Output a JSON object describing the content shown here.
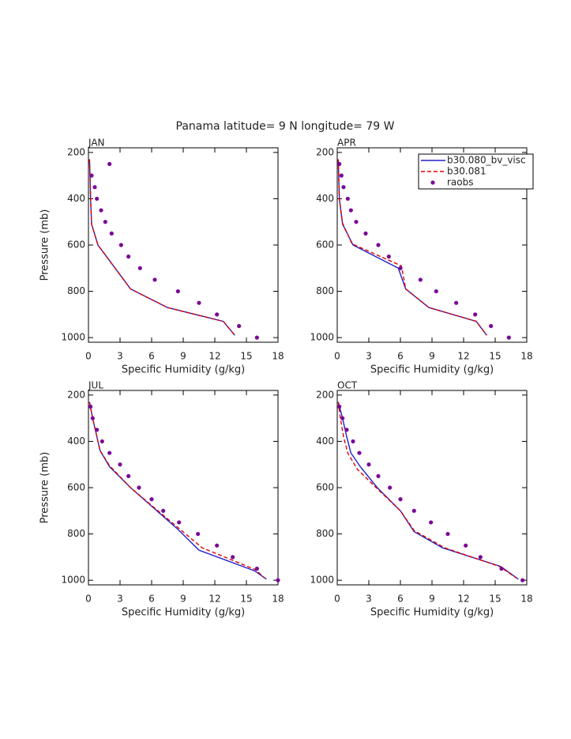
{
  "title": "Panama  latitude= 9 N longitude= 79 W",
  "chart_data": [
    {
      "type": "profile",
      "label": "JAN",
      "xlabel": "Specific Humidity (g/kg)",
      "ylabel": "Pressure (mb)",
      "xlim": [
        0,
        18
      ],
      "xticks": [
        0,
        3,
        6,
        9,
        12,
        15,
        18
      ],
      "ylim": [
        1020,
        180
      ],
      "yticks": [
        200,
        400,
        600,
        800,
        1000
      ],
      "series": [
        {
          "name": "b30.080_bv_visc",
          "color": "#2020c8",
          "style": "solid",
          "values": [
            0.1,
            0.15,
            0.2,
            0.3,
            0.9,
            4,
            7.5,
            12.8,
            13.9
          ],
          "levels": [
            230,
            300,
            400,
            510,
            600,
            790,
            870,
            930,
            990
          ]
        },
        {
          "name": "b30.081",
          "color": "#e00000",
          "style": "dashed",
          "values": [
            0.1,
            0.15,
            0.2,
            0.3,
            0.9,
            4,
            7.5,
            12.8,
            13.9
          ],
          "levels": [
            230,
            300,
            400,
            510,
            600,
            790,
            870,
            930,
            990
          ]
        },
        {
          "name": "raobs",
          "color": "#7a0a96",
          "style": "dots",
          "values": [
            2,
            0.3,
            0.6,
            0.8,
            1.2,
            1.6,
            2.2,
            3.1,
            3.8,
            4.9,
            6.3,
            8.5,
            10.5,
            12.2,
            14.3,
            16
          ],
          "levels": [
            250,
            300,
            350,
            400,
            450,
            500,
            550,
            600,
            650,
            700,
            750,
            800,
            850,
            900,
            950,
            1000
          ]
        }
      ]
    },
    {
      "type": "profile",
      "label": "APR",
      "xlabel": "Specific Humidity (g/kg)",
      "legend": "upper right",
      "xlim": [
        0,
        18
      ],
      "xticks": [
        0,
        3,
        6,
        9,
        12,
        15,
        18
      ],
      "ylim": [
        1020,
        180
      ],
      "yticks": [
        200,
        400,
        600,
        800,
        1000
      ],
      "series": [
        {
          "name": "b30.080_bv_visc",
          "color": "#2020c8",
          "style": "solid",
          "values": [
            0.1,
            0.2,
            0.5,
            1.5,
            5.8,
            6.5,
            8.7,
            13.2,
            14.2
          ],
          "levels": [
            230,
            400,
            510,
            600,
            700,
            790,
            870,
            930,
            990
          ]
        },
        {
          "name": "b30.081",
          "color": "#e00000",
          "style": "dashed",
          "values": [
            0.1,
            0.2,
            0.5,
            1.4,
            6.1,
            6.5,
            8.7,
            13.2,
            14.2
          ],
          "levels": [
            230,
            400,
            505,
            595,
            690,
            790,
            870,
            930,
            990
          ]
        },
        {
          "name": "raobs",
          "color": "#7a0a96",
          "style": "dots",
          "values": [
            0.2,
            0.4,
            0.6,
            1,
            1.3,
            1.8,
            2.7,
            3.9,
            4.9,
            6,
            7.9,
            9.4,
            11.3,
            13.1,
            14.6,
            16.3
          ],
          "levels": [
            250,
            300,
            350,
            400,
            450,
            500,
            550,
            600,
            650,
            700,
            750,
            800,
            850,
            900,
            950,
            1000
          ]
        }
      ]
    },
    {
      "type": "profile",
      "label": "JUL",
      "xlabel": "Specific Humidity (g/kg)",
      "ylabel": "Pressure (mb)",
      "xlim": [
        0,
        18
      ],
      "xticks": [
        0,
        3,
        6,
        9,
        12,
        15,
        18
      ],
      "ylim": [
        1020,
        180
      ],
      "yticks": [
        200,
        400,
        600,
        800,
        1000
      ],
      "series": [
        {
          "name": "b30.080_bv_visc",
          "color": "#2020c8",
          "style": "solid",
          "values": [
            0.1,
            0.4,
            0.8,
            1.1,
            2,
            4,
            6.5,
            8.5,
            10.5,
            15.8,
            16.9
          ],
          "levels": [
            230,
            300,
            380,
            440,
            510,
            600,
            700,
            780,
            870,
            960,
            995
          ]
        },
        {
          "name": "b30.081",
          "color": "#e00000",
          "style": "dashed",
          "values": [
            0.1,
            0.4,
            0.8,
            1.1,
            2,
            4,
            6.6,
            8.7,
            10.8,
            15.9,
            16.7
          ],
          "levels": [
            230,
            300,
            380,
            440,
            505,
            600,
            700,
            780,
            860,
            955,
            990
          ]
        },
        {
          "name": "raobs",
          "color": "#7a0a96",
          "style": "dots",
          "values": [
            0.2,
            0.4,
            0.8,
            1.3,
            2,
            3,
            3.8,
            4.8,
            6,
            7.1,
            8.6,
            10.4,
            12.2,
            13.7,
            16,
            18
          ],
          "levels": [
            250,
            300,
            350,
            400,
            450,
            500,
            550,
            600,
            650,
            700,
            750,
            800,
            850,
            900,
            950,
            1000
          ]
        }
      ]
    },
    {
      "type": "profile",
      "label": "OCT",
      "xlabel": "Specific Humidity (g/kg)",
      "xlim": [
        0,
        18
      ],
      "xticks": [
        0,
        3,
        6,
        9,
        12,
        15,
        18
      ],
      "ylim": [
        1020,
        180
      ],
      "yticks": [
        200,
        400,
        600,
        800,
        1000
      ],
      "series": [
        {
          "name": "b30.080_bv_visc",
          "color": "#2020c8",
          "style": "solid",
          "values": [
            0.1,
            0.5,
            0.9,
            1.3,
            2.2,
            3.8,
            6,
            7.3,
            10,
            15.5,
            17.2
          ],
          "levels": [
            230,
            300,
            380,
            450,
            510,
            600,
            700,
            790,
            860,
            940,
            995
          ]
        },
        {
          "name": "b30.081",
          "color": "#e00000",
          "style": "dashed",
          "values": [
            0.1,
            0.3,
            0.6,
            1,
            1.9,
            3.7,
            6,
            7.3,
            10.2,
            15.4,
            17
          ],
          "levels": [
            230,
            300,
            380,
            450,
            520,
            600,
            700,
            785,
            860,
            940,
            990
          ]
        },
        {
          "name": "raobs",
          "color": "#7a0a96",
          "style": "dots",
          "values": [
            0.2,
            0.5,
            0.9,
            1.5,
            2.1,
            3,
            3.9,
            5,
            6,
            7.3,
            8.9,
            10.5,
            12.2,
            13.6,
            15.6,
            17.6
          ],
          "levels": [
            250,
            300,
            350,
            400,
            450,
            500,
            550,
            600,
            650,
            700,
            750,
            800,
            850,
            900,
            950,
            1000
          ]
        }
      ]
    }
  ]
}
